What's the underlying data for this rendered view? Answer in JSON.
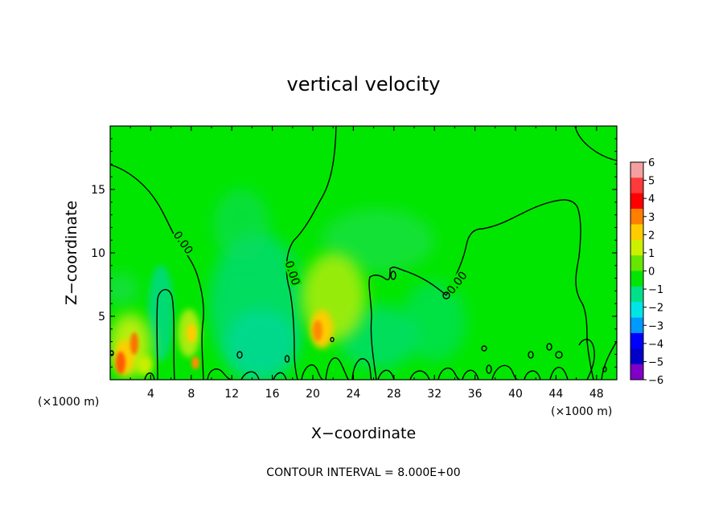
{
  "chart_data": {
    "type": "heatmap",
    "title": "vertical velocity",
    "xlabel": "X−coordinate",
    "ylabel": "Z−coordinate",
    "x_unit": "(×1000 m)",
    "y_unit": "(×1000 m)",
    "xlim": [
      0,
      50
    ],
    "ylim": [
      0,
      20
    ],
    "x_ticks": [
      4,
      8,
      12,
      16,
      20,
      24,
      28,
      32,
      36,
      40,
      44,
      48
    ],
    "y_ticks": [
      5,
      10,
      15
    ],
    "colorbar": {
      "levels": [
        6,
        5,
        4,
        3,
        2,
        1,
        0,
        -1,
        -2,
        -3,
        -4,
        -5,
        -6
      ],
      "labels": [
        "6",
        "5",
        "4",
        "3",
        "2",
        "1",
        "0",
        "−1",
        "−2",
        "−3",
        "−4",
        "−5",
        "−6"
      ],
      "colors": [
        "#f4a0a0",
        "#ff3a3a",
        "#ff0000",
        "#ff7f00",
        "#ffcc00",
        "#ccf000",
        "#66e600",
        "#00e600",
        "#00e08a",
        "#00e6e6",
        "#0099ff",
        "#0000ff",
        "#0000c8",
        "#8000c8"
      ]
    },
    "background_color": "#00e600",
    "contour_label": "0.00",
    "contour_interval_text": "CONTOUR INTERVAL =  8.000E+00",
    "features": [
      {
        "name": "updraft-low-left",
        "x": 1.5,
        "z": 1.5,
        "w": 3.5
      },
      {
        "name": "updraft-low-left-2",
        "x": 3,
        "z": 3,
        "w": 3
      },
      {
        "name": "updraft-x8",
        "x": 7.5,
        "z": 3,
        "w": 2
      },
      {
        "name": "updraft-x20",
        "x": 20,
        "z": 4,
        "w": 3
      },
      {
        "name": "updraft-x22",
        "x": 21.5,
        "z": 7,
        "w": 1.2
      },
      {
        "name": "downdraft-x14",
        "x": 14.5,
        "z": 5,
        "w": -1.2
      },
      {
        "name": "downdraft-x26",
        "x": 26,
        "z": 3,
        "w": -1
      }
    ]
  }
}
